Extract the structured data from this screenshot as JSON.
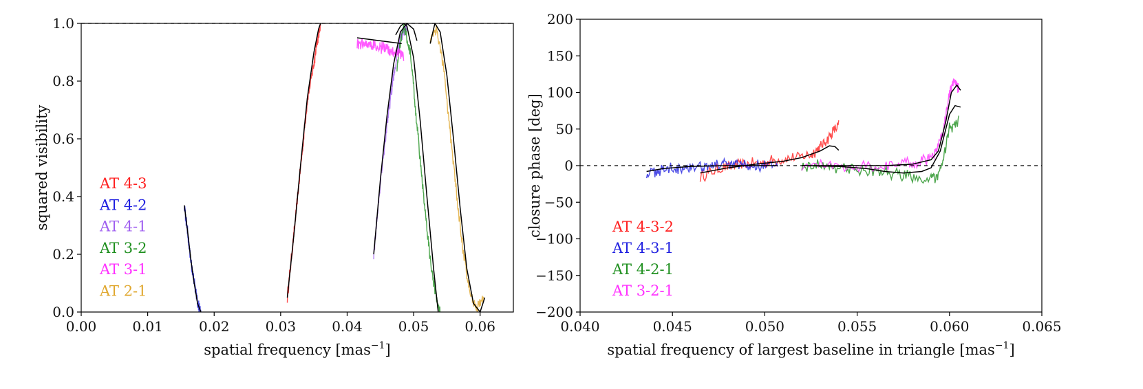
{
  "chart_data": [
    {
      "id": "vis",
      "type": "line",
      "xlabel": "spatial frequency [mas",
      "xlabel_sup": "−1",
      "xlabel_end": "]",
      "ylabel": "squared visibility",
      "xlim": [
        0,
        0.065
      ],
      "ylim": [
        0,
        1.0
      ],
      "xticks": [
        0,
        0.01,
        0.02,
        0.03,
        0.04,
        0.05,
        0.06
      ],
      "xtick_labels": [
        "0.00",
        "0.01",
        "0.02",
        "0.03",
        "0.04",
        "0.05",
        "0.06"
      ],
      "yticks": [
        0,
        0.2,
        0.4,
        0.6,
        0.8,
        1.0
      ],
      "ytick_labels": [
        "0.0",
        "0.2",
        "0.4",
        "0.6",
        "0.8",
        "1.0"
      ],
      "reference_line": 1.0,
      "legend_position": "lower-left",
      "series": [
        {
          "name": "AT 4-3",
          "color": "#ff2020",
          "x": [
            0.031,
            0.032,
            0.033,
            0.034,
            0.035,
            0.0355,
            0.036
          ],
          "y": [
            0.05,
            0.27,
            0.5,
            0.73,
            0.86,
            0.94,
            0.99
          ]
        },
        {
          "name": "AT 4-2",
          "color": "#2020e0",
          "x": [
            0.0155,
            0.016,
            0.0165,
            0.017,
            0.0175,
            0.018
          ],
          "y": [
            0.37,
            0.28,
            0.18,
            0.1,
            0.03,
            0.0
          ]
        },
        {
          "name": "AT 4-1",
          "color": "#a060f0",
          "x": [
            0.044,
            0.045,
            0.046,
            0.047,
            0.048,
            0.049
          ],
          "y": [
            0.2,
            0.45,
            0.65,
            0.82,
            0.95,
            0.99
          ]
        },
        {
          "name": "AT 3-2",
          "color": "#209020",
          "x": [
            0.0475,
            0.0485,
            0.0495,
            0.0505,
            0.0515,
            0.0525,
            0.0535,
            0.054
          ],
          "y": [
            0.85,
            1.0,
            0.9,
            0.65,
            0.4,
            0.18,
            0.03,
            0.0
          ]
        },
        {
          "name": "AT 3-1",
          "color": "#ff30ff",
          "x": [
            0.0415,
            0.043,
            0.0445,
            0.046,
            0.0475,
            0.0485
          ],
          "y": [
            0.93,
            0.93,
            0.92,
            0.91,
            0.9,
            0.89
          ]
        },
        {
          "name": "AT 2-1",
          "color": "#e0a830",
          "x": [
            0.0525,
            0.0535,
            0.0545,
            0.0555,
            0.0565,
            0.0575,
            0.0585,
            0.0595,
            0.0605
          ],
          "y": [
            0.95,
            0.98,
            0.85,
            0.62,
            0.4,
            0.2,
            0.06,
            0.01,
            0.05
          ]
        }
      ],
      "fits": [
        {
          "x": [
            0.031,
            0.032,
            0.033,
            0.034,
            0.035,
            0.0357,
            0.036
          ],
          "y": [
            0.05,
            0.27,
            0.51,
            0.74,
            0.9,
            0.98,
            1.0
          ]
        },
        {
          "x": [
            0.0155,
            0.016,
            0.0165,
            0.017,
            0.0175,
            0.018
          ],
          "y": [
            0.37,
            0.28,
            0.18,
            0.1,
            0.03,
            0.0
          ]
        },
        {
          "x": [
            0.044,
            0.045,
            0.046,
            0.047,
            0.048,
            0.049,
            0.05,
            0.0505
          ],
          "y": [
            0.2,
            0.46,
            0.68,
            0.86,
            0.97,
            1.0,
            0.98,
            0.94
          ]
        },
        {
          "x": [
            0.0473,
            0.048,
            0.0485,
            0.049,
            0.05,
            0.051,
            0.052,
            0.053,
            0.0537
          ],
          "y": [
            0.96,
            0.99,
            1.0,
            0.99,
            0.88,
            0.66,
            0.4,
            0.15,
            0.0
          ]
        },
        {
          "x": [
            0.0415,
            0.0482
          ],
          "y": [
            0.95,
            0.93
          ]
        },
        {
          "x": [
            0.0525,
            0.0532,
            0.054,
            0.055,
            0.056,
            0.057,
            0.058,
            0.059,
            0.06,
            0.0607
          ],
          "y": [
            0.93,
            1.0,
            0.97,
            0.82,
            0.6,
            0.36,
            0.15,
            0.03,
            0.0,
            0.05
          ]
        }
      ]
    },
    {
      "id": "cp",
      "type": "line",
      "xlabel": "spatial frequency of largest baseline in triangle [mas",
      "xlabel_sup": "−1",
      "xlabel_end": "]",
      "ylabel": "closure phase [deg]",
      "xlim": [
        0.04,
        0.065
      ],
      "ylim": [
        -200,
        200
      ],
      "xticks": [
        0.04,
        0.045,
        0.05,
        0.055,
        0.06,
        0.065
      ],
      "xtick_labels": [
        "0.040",
        "0.045",
        "0.050",
        "0.055",
        "0.060",
        "0.065"
      ],
      "yticks": [
        -200,
        -150,
        -100,
        -50,
        0,
        50,
        100,
        150,
        200
      ],
      "ytick_labels": [
        "−200",
        "−150",
        "−100",
        "−50",
        "0",
        "50",
        "100",
        "150",
        "200"
      ],
      "reference_line": 0,
      "legend_position": "lower-left",
      "series": [
        {
          "name": "AT 4-3-2",
          "color": "#ff2020",
          "x": [
            0.0465,
            0.0475,
            0.0485,
            0.0495,
            0.0505,
            0.0515,
            0.0525,
            0.053,
            0.0535,
            0.054
          ],
          "y": [
            -15,
            -5,
            0,
            3,
            7,
            10,
            15,
            25,
            40,
            55
          ]
        },
        {
          "name": "AT 4-3-1",
          "color": "#2020e0",
          "x": [
            0.0436,
            0.0445,
            0.0455,
            0.0465,
            0.0475,
            0.0485,
            0.0495,
            0.0507
          ],
          "y": [
            -10,
            -5,
            -2,
            0,
            1,
            0,
            0,
            0
          ]
        },
        {
          "name": "AT 4-2-1",
          "color": "#209020",
          "x": [
            0.052,
            0.053,
            0.054,
            0.055,
            0.056,
            0.057,
            0.058,
            0.059,
            0.0595,
            0.06,
            0.0605
          ],
          "y": [
            0,
            0,
            -2,
            -5,
            -8,
            -12,
            -15,
            -20,
            -10,
            50,
            60
          ]
        },
        {
          "name": "AT 3-2-1",
          "color": "#ff30ff",
          "x": [
            0.052,
            0.054,
            0.056,
            0.0575,
            0.0585,
            0.0592,
            0.0597,
            0.06,
            0.0603,
            0.0605
          ],
          "y": [
            0,
            0,
            0,
            2,
            6,
            15,
            50,
            100,
            115,
            105
          ]
        }
      ],
      "fits": [
        {
          "x": [
            0.0465,
            0.048,
            0.0495,
            0.051,
            0.052,
            0.053,
            0.0535,
            0.0538,
            0.054
          ],
          "y": [
            -10,
            -3,
            2,
            6,
            11,
            20,
            27,
            26,
            21
          ]
        },
        {
          "x": [
            0.0436,
            0.0445,
            0.046,
            0.048,
            0.05,
            0.0507
          ],
          "y": [
            -8,
            -4,
            -1,
            0,
            0,
            0
          ]
        },
        {
          "x": [
            0.052,
            0.054,
            0.0555,
            0.0565,
            0.0575,
            0.0585,
            0.059,
            0.0595,
            0.06,
            0.0603,
            0.0606
          ],
          "y": [
            0,
            -1,
            -4,
            -8,
            -10,
            -8,
            -3,
            20,
            70,
            82,
            80
          ]
        },
        {
          "x": [
            0.052,
            0.0545,
            0.0565,
            0.058,
            0.059,
            0.0594,
            0.0598,
            0.0601,
            0.0604,
            0.0606
          ],
          "y": [
            0,
            0,
            0,
            2,
            8,
            20,
            60,
            100,
            110,
            103
          ]
        }
      ]
    }
  ]
}
